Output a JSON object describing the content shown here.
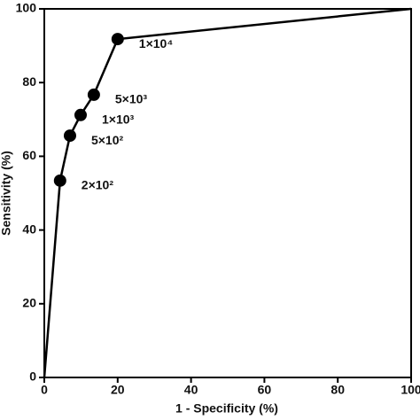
{
  "chart_data": {
    "type": "line",
    "xlabel": "1 - Specificity (%)",
    "ylabel": "Sensitivity (%)",
    "x": [
      0,
      4.3,
      7,
      9.9,
      13.5,
      20,
      100
    ],
    "series": [
      {
        "color": "#000000",
        "values": [
          0,
          53.4,
          65.6,
          71.2,
          76.7,
          91.8,
          100
        ],
        "point_labels": [
          null,
          "2×10²",
          "5×10²",
          "1×10³",
          "5×10³",
          "1×10⁴",
          null
        ]
      }
    ],
    "xlim": [
      0,
      100
    ],
    "ylim": [
      0,
      100
    ],
    "xticks": [
      0,
      20,
      40,
      60,
      80,
      100
    ],
    "yticks": [
      0,
      20,
      40,
      60,
      80,
      100
    ]
  }
}
